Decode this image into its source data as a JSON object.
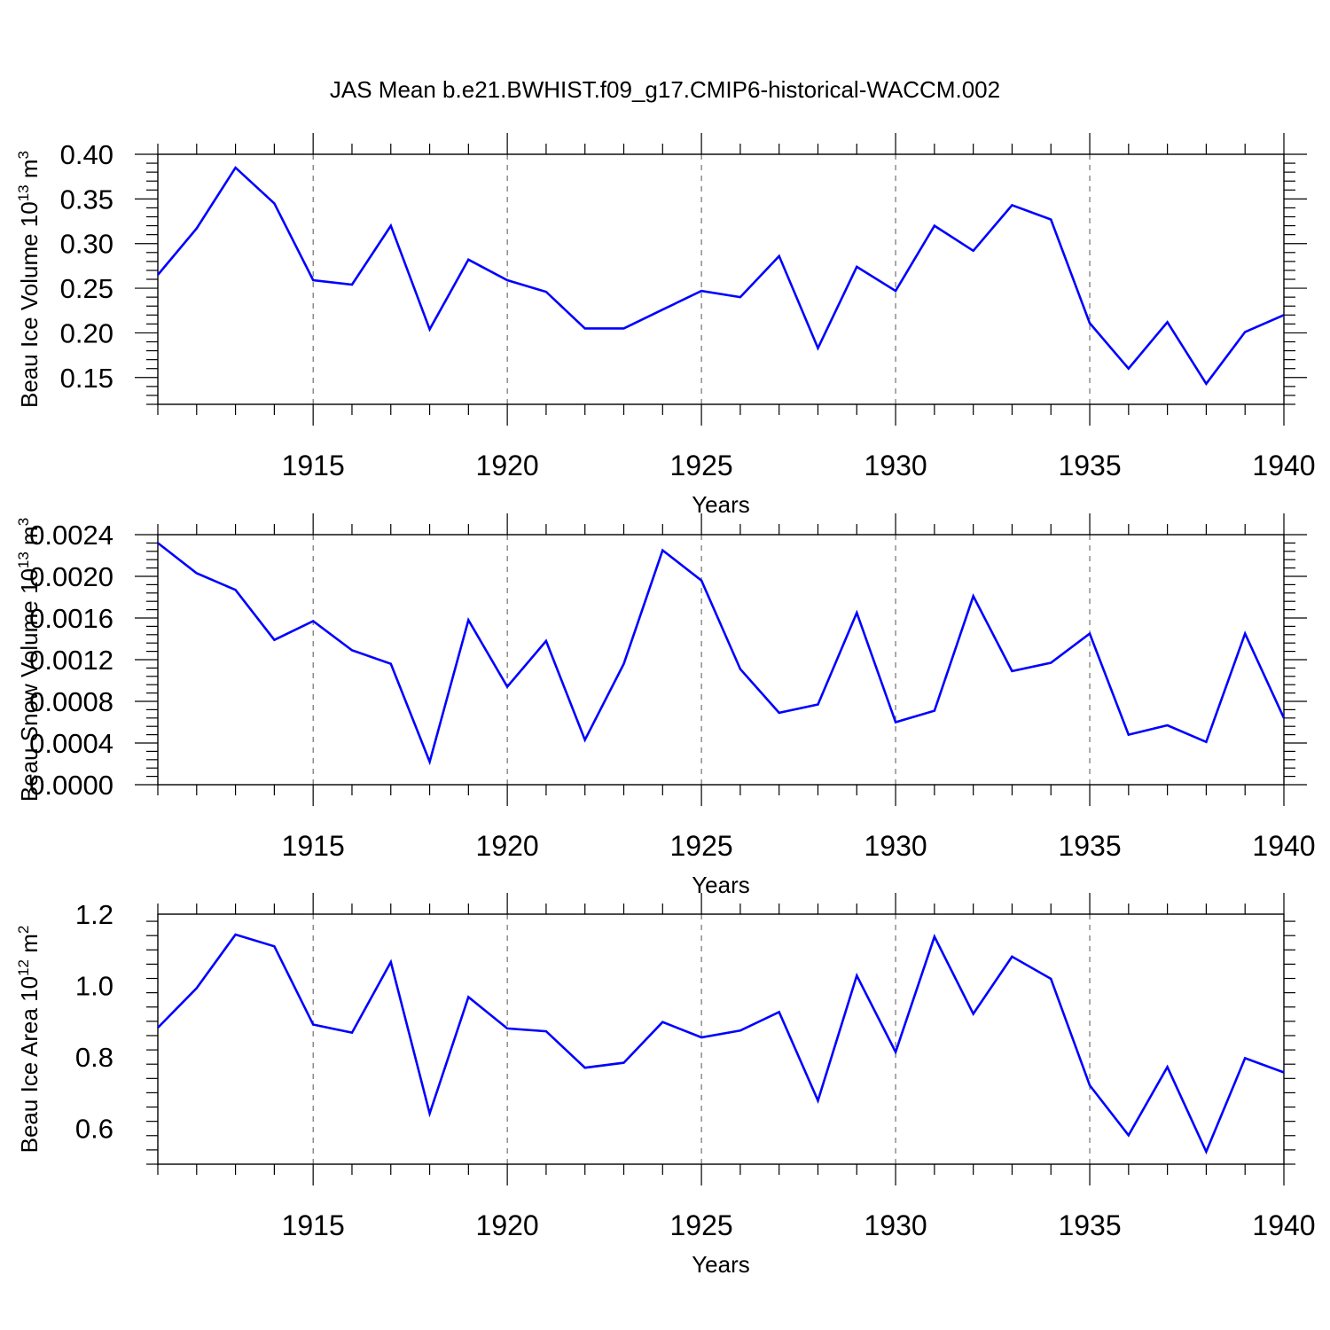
{
  "figure_title": "JAS Mean b.e21.BWHIST.f09_g17.CMIP6-historical-WACCM.002",
  "line_color": "#0000ff",
  "chart_data": [
    {
      "type": "line",
      "title": "",
      "xlabel": "Years",
      "ylabel": "Beau Ice Volume 10",
      "ylabel_sup": "13",
      "ylabel_unit": "m",
      "ylabel_unit_sup": "3",
      "xlim": [
        1911,
        1940
      ],
      "ylim": [
        0.12,
        0.4
      ],
      "x_ticks": [
        1915,
        1920,
        1925,
        1930,
        1935,
        1940
      ],
      "x_tick_labels": [
        "1915",
        "1920",
        "1925",
        "1930",
        "1935",
        "1940"
      ],
      "y_ticks": [
        0.4,
        0.35,
        0.3,
        0.25,
        0.2,
        0.15
      ],
      "y_tick_labels": [
        "0.40",
        "0.35",
        "0.30",
        "0.25",
        "0.20",
        "0.15"
      ],
      "grid_x": true,
      "x": [
        1911,
        1912,
        1913,
        1914,
        1915,
        1916,
        1917,
        1918,
        1919,
        1920,
        1921,
        1922,
        1923,
        1924,
        1925,
        1926,
        1927,
        1928,
        1929,
        1930,
        1931,
        1932,
        1933,
        1934,
        1935,
        1936,
        1937,
        1938,
        1939,
        1940
      ],
      "values": [
        0.265,
        0.317,
        0.385,
        0.345,
        0.259,
        0.254,
        0.32,
        0.204,
        0.282,
        0.259,
        0.246,
        0.205,
        0.205,
        0.226,
        0.247,
        0.24,
        0.286,
        0.183,
        0.274,
        0.247,
        0.32,
        0.292,
        0.343,
        0.327,
        0.211,
        0.16,
        0.212,
        0.143,
        0.201,
        0.22
      ]
    },
    {
      "type": "line",
      "title": "",
      "xlabel": "Years",
      "ylabel": "Beau Snow Volume 10",
      "ylabel_sup": "13",
      "ylabel_unit": "m",
      "ylabel_unit_sup": "3",
      "xlim": [
        1911,
        1940
      ],
      "ylim": [
        0.0,
        0.0024
      ],
      "x_ticks": [
        1915,
        1920,
        1925,
        1930,
        1935,
        1940
      ],
      "x_tick_labels": [
        "1915",
        "1920",
        "1925",
        "1930",
        "1935",
        "1940"
      ],
      "y_ticks": [
        0.0024,
        0.002,
        0.0016,
        0.0012,
        0.0008,
        0.0004,
        0.0
      ],
      "y_tick_labels": [
        "0.0024",
        "0.0020",
        "0.0016",
        "0.0012",
        "0.0008",
        "0.0004",
        "0.0000"
      ],
      "grid_x": true,
      "x": [
        1911,
        1912,
        1913,
        1914,
        1915,
        1916,
        1917,
        1918,
        1919,
        1920,
        1921,
        1922,
        1923,
        1924,
        1925,
        1926,
        1927,
        1928,
        1929,
        1930,
        1931,
        1932,
        1933,
        1934,
        1935,
        1936,
        1937,
        1938,
        1939,
        1940
      ],
      "values": [
        0.00232,
        0.00203,
        0.00187,
        0.00139,
        0.00157,
        0.00129,
        0.00116,
        0.00022,
        0.00158,
        0.00094,
        0.00138,
        0.00043,
        0.00116,
        0.00225,
        0.00196,
        0.00111,
        0.00069,
        0.00077,
        0.00165,
        0.0006,
        0.00071,
        0.00181,
        0.00109,
        0.00117,
        0.00145,
        0.00048,
        0.00057,
        0.00041,
        0.00145,
        0.00064
      ]
    },
    {
      "type": "line",
      "title": "",
      "xlabel": "Years",
      "ylabel": "Beau Ice Area 10",
      "ylabel_sup": "12",
      "ylabel_unit": "m",
      "ylabel_unit_sup": "2",
      "xlim": [
        1911,
        1940
      ],
      "ylim": [
        0.5,
        1.2
      ],
      "x_ticks": [
        1915,
        1920,
        1925,
        1930,
        1935,
        1940
      ],
      "x_tick_labels": [
        "1915",
        "1920",
        "1925",
        "1930",
        "1935",
        "1940"
      ],
      "y_ticks": [
        1.2,
        1.0,
        0.8,
        0.6
      ],
      "y_tick_labels": [
        "1.2",
        "1.0",
        "0.8",
        "0.6"
      ],
      "grid_x": true,
      "x": [
        1911,
        1912,
        1913,
        1914,
        1915,
        1916,
        1917,
        1918,
        1919,
        1920,
        1921,
        1922,
        1923,
        1924,
        1925,
        1926,
        1927,
        1928,
        1929,
        1930,
        1931,
        1932,
        1933,
        1934,
        1935,
        1936,
        1937,
        1938,
        1939,
        1940
      ],
      "values": [
        0.882,
        0.993,
        1.143,
        1.11,
        0.891,
        0.868,
        1.066,
        0.642,
        0.968,
        0.88,
        0.872,
        0.77,
        0.784,
        0.898,
        0.855,
        0.874,
        0.926,
        0.678,
        1.028,
        0.814,
        1.137,
        0.921,
        1.081,
        1.019,
        0.721,
        0.581,
        0.772,
        0.535,
        0.797,
        0.757
      ]
    }
  ]
}
